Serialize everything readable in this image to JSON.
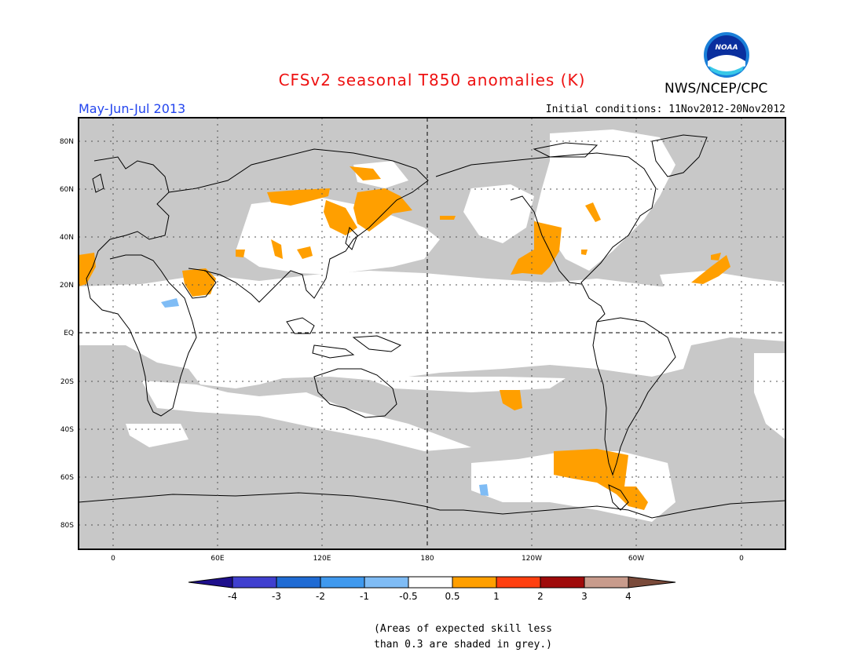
{
  "title": "CFSv2 seasonal T850 anomalies (K)",
  "org": "NWS/NCEP/CPC",
  "logo_text": "NOAA",
  "period": "May-Jun-Jul 2013",
  "initial_conditions": "Initial conditions: 11Nov2012-20Nov2012",
  "lat_labels": [
    "80N",
    "60N",
    "40N",
    "20N",
    "EQ",
    "20S",
    "40S",
    "60S",
    "80S"
  ],
  "lon_labels": [
    "0",
    "60E",
    "120E",
    "180",
    "120W",
    "60W",
    "0"
  ],
  "legend": {
    "colors": [
      "#1e0f8c",
      "#3f3fcf",
      "#1f6bd4",
      "#3f99ee",
      "#7fbcf5",
      "#ffffff",
      "#ff9f00",
      "#ff3f10",
      "#9f0a0a",
      "#c89b8c",
      "#7a4a3a"
    ],
    "labels": [
      "-4",
      "-3",
      "-2",
      "-1",
      "-0.5",
      "0.5",
      "1",
      "2",
      "3",
      "4"
    ]
  },
  "footnote": {
    "line1": "(Areas of expected skill less",
    "line2": "than 0.3 are shaded in grey.)"
  },
  "colors": {
    "skill_grey": "#c8c8c8",
    "warm": "#ff9f00",
    "cool": "#7fbcf5",
    "title_red": "#ee1111",
    "period_blue": "#2244ee"
  }
}
